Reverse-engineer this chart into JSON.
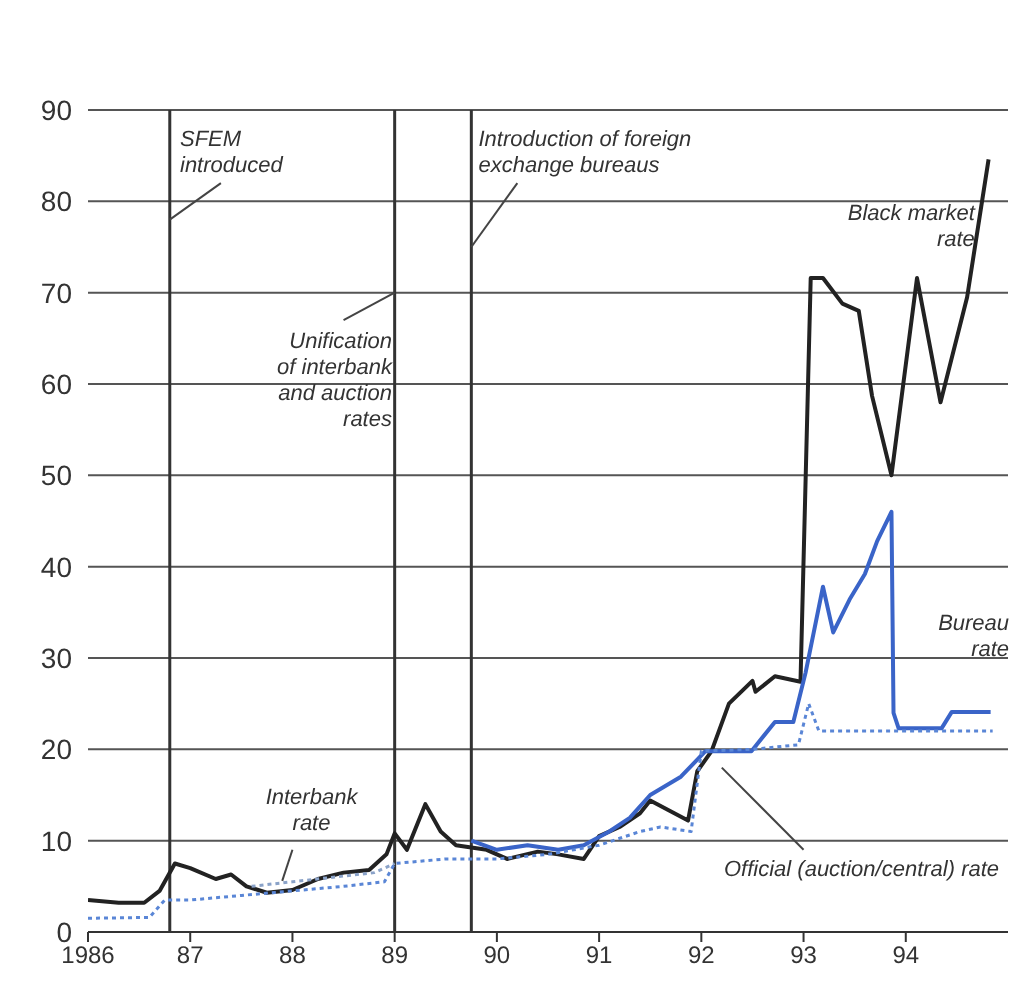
{
  "chart_data": {
    "type": "line",
    "xlim": [
      1986,
      1995
    ],
    "xticks": [
      1986,
      {
        "value": 1987,
        "label": "87"
      },
      {
        "value": 1988,
        "label": "88"
      },
      {
        "value": 1989,
        "label": "89"
      },
      {
        "value": 1990,
        "label": "90"
      },
      {
        "value": 1991,
        "label": "91"
      },
      {
        "value": 1992,
        "label": "92"
      },
      {
        "value": 1993,
        "label": "93"
      },
      {
        "value": 1994,
        "label": "94"
      }
    ],
    "ylim": [
      0,
      90
    ],
    "yticks": [
      0,
      10,
      20,
      30,
      40,
      50,
      60,
      70,
      80,
      90
    ],
    "grid": "y",
    "legend": false,
    "marker": "none",
    "ref_lines": [
      {
        "axis": "x",
        "value": 1986.8,
        "label": "SFEM introduced",
        "color": "#333333"
      },
      {
        "axis": "x",
        "value": 1989.0,
        "label": "Unification of interbank and auction rates",
        "color": "#333333"
      },
      {
        "axis": "x",
        "value": 1989.75,
        "label": "Introduction of foreign exchange bureaus",
        "color": "#333333"
      }
    ],
    "series": [
      {
        "name": "Black market rate",
        "color": "#222222",
        "line_style": "solid",
        "x": [
          1986.0,
          1986.3,
          1986.55,
          1986.7,
          1986.85,
          1987.0,
          1987.25,
          1987.4,
          1987.55,
          1987.75,
          1988.0,
          1988.25,
          1988.5,
          1988.75,
          1988.92,
          1989.0,
          1989.12,
          1989.3,
          1989.45,
          1989.6,
          1989.9,
          1990.1,
          1990.4,
          1990.6,
          1990.85,
          1991.0,
          1991.2,
          1991.4,
          1991.5,
          1991.87,
          1991.96,
          1992.1,
          1992.27,
          1992.5,
          1992.53,
          1992.72,
          1992.97,
          1993.07,
          1993.19,
          1993.38,
          1993.54,
          1993.67,
          1993.86,
          1994.11,
          1994.34,
          1994.6,
          1994.81
        ],
        "values": [
          3.5,
          3.2,
          3.2,
          4.5,
          7.5,
          7,
          5.8,
          6.3,
          5,
          4.3,
          4.6,
          5.8,
          6.5,
          6.8,
          8.5,
          10.8,
          9,
          14,
          11,
          9.5,
          9,
          8,
          8.8,
          8.5,
          8,
          10.5,
          11.5,
          13,
          14.4,
          12.2,
          17.6,
          19.8,
          25,
          27.5,
          26.3,
          28,
          27.4,
          71.6,
          71.6,
          68.8,
          68,
          58.7,
          50,
          71.6,
          58,
          69.5,
          84.6
        ]
      },
      {
        "name": "Bureau rate",
        "color": "#3a64c8",
        "line_style": "solid",
        "x": [
          1989.75,
          1990.0,
          1990.3,
          1990.6,
          1990.85,
          1991.1,
          1991.3,
          1991.5,
          1991.8,
          1992.04,
          1992.49,
          1992.72,
          1992.9,
          1993.02,
          1993.19,
          1993.29,
          1993.45,
          1993.6,
          1993.72,
          1993.86,
          1993.88,
          1993.93,
          1994.35,
          1994.45,
          1994.83
        ],
        "values": [
          10,
          9,
          9.5,
          9,
          9.5,
          11,
          12.5,
          15,
          17,
          19.8,
          19.8,
          23,
          23,
          28.4,
          37.8,
          32.8,
          36.4,
          39.2,
          42.8,
          46,
          24,
          22.3,
          22.3,
          24.1,
          24.1
        ]
      },
      {
        "name": "Official (auction/central) rate",
        "color": "#5a86d6",
        "line_style": "dotted",
        "x": [
          1986.0,
          1986.6,
          1986.75,
          1987.0,
          1987.5,
          1988.0,
          1988.5,
          1988.9,
          1989.0,
          1989.5,
          1990.0,
          1990.5,
          1991.0,
          1991.4,
          1991.6,
          1991.9,
          1992.0,
          1992.5,
          1992.95,
          1993.05,
          1993.15,
          1994.85
        ],
        "values": [
          1.5,
          1.6,
          3.5,
          3.5,
          4,
          4.5,
          5,
          5.5,
          7.5,
          8,
          8,
          8.5,
          9.5,
          11,
          11.5,
          11,
          19.8,
          20,
          20.5,
          25,
          22,
          22
        ]
      },
      {
        "name": "Interbank rate",
        "color": "#8aa2c8",
        "line_style": "dotted",
        "x": [
          1987.6,
          1988.0,
          1988.4,
          1988.8,
          1989.0
        ],
        "values": [
          5,
          5.5,
          6,
          6.5,
          7.5
        ]
      }
    ]
  }
}
